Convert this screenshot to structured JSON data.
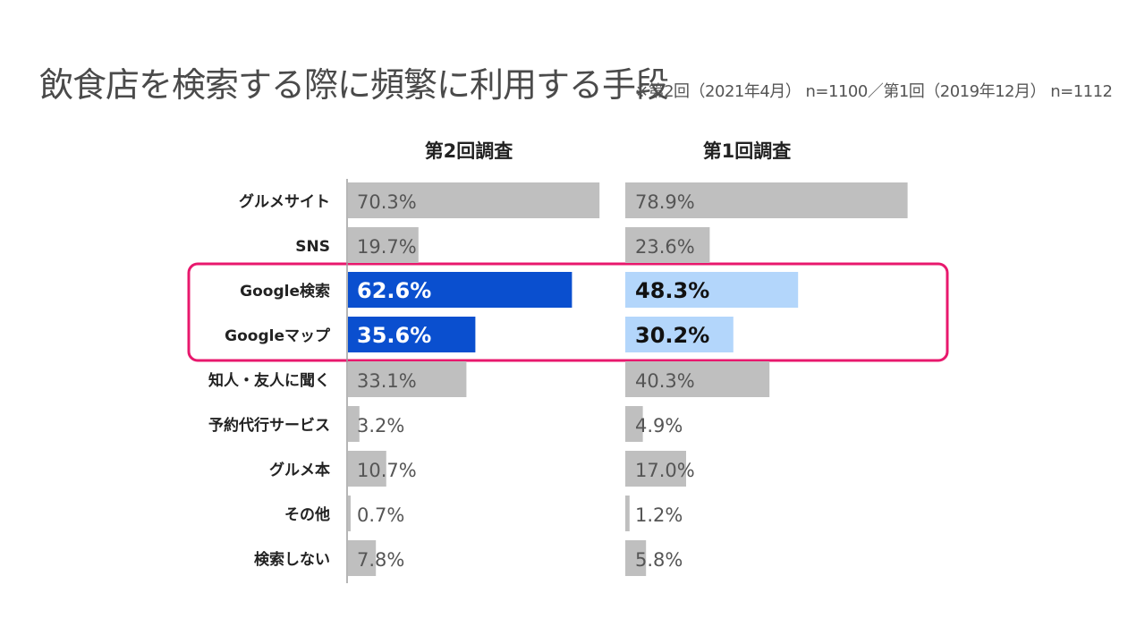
{
  "title": "飲食店を検索する際に頻繁に利用する手段",
  "note": "※第2回（2021年4月） n=1100／第1回（2019年12月） n=1112",
  "colors": {
    "default_bar": "#bfbfbf",
    "survey2_highlight": "#0a4fcf",
    "survey1_highlight": "#b3d6fb",
    "highlight_box": "#e8186d",
    "axis": "#9e9e9e"
  },
  "chart_data": {
    "type": "bar",
    "orientation": "horizontal",
    "categories": [
      "グルメサイト",
      "SNS",
      "Google検索",
      "Googleマップ",
      "知人・友人に聞く",
      "予約代行サービス",
      "グルメ本",
      "その他",
      "検索しない"
    ],
    "series": [
      {
        "name": "第2回調査",
        "values": [
          70.3,
          19.7,
          62.6,
          35.6,
          33.1,
          3.2,
          10.7,
          0.7,
          7.8
        ],
        "labels": [
          "70.3%",
          "19.7%",
          "62.6%",
          "35.6%",
          "33.1%",
          "3.2%",
          "10.7%",
          "0.7%",
          "7.8%"
        ]
      },
      {
        "name": "第1回調査",
        "values": [
          78.9,
          23.6,
          48.3,
          30.2,
          40.3,
          4.9,
          17.0,
          1.2,
          5.8
        ],
        "labels": [
          "78.9%",
          "23.6%",
          "48.3%",
          "30.2%",
          "40.3%",
          "4.9%",
          "17.0%",
          "1.2%",
          "5.8%"
        ]
      }
    ],
    "highlighted_categories": [
      "Google検索",
      "Googleマップ"
    ],
    "xlim": [
      0,
      100
    ],
    "grid": false,
    "legend": "column headers above panels"
  }
}
